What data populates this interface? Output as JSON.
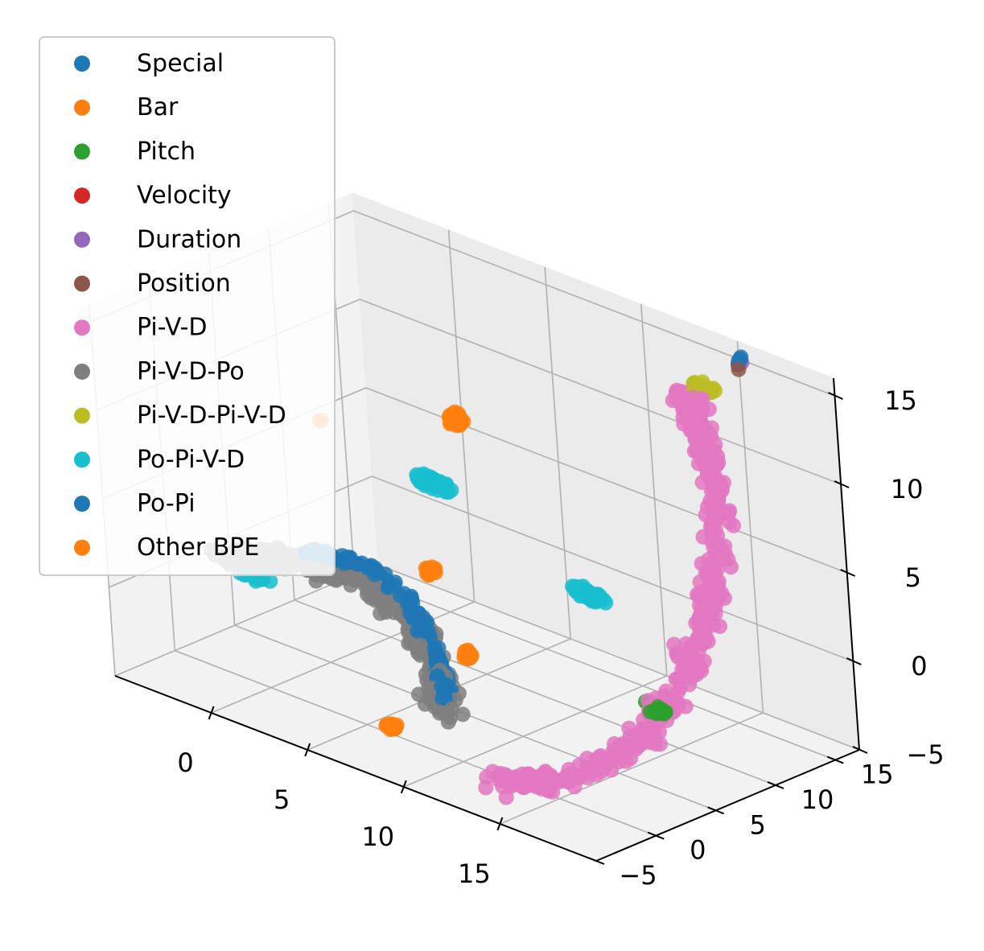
{
  "chart_data": {
    "type": "scatter",
    "projection": "3d",
    "title": "",
    "xlabel": "",
    "ylabel": "",
    "zlabel": "",
    "grid": true,
    "legend_position": "upper-left",
    "xlim": [
      -5,
      20
    ],
    "ylim": [
      -5,
      17
    ],
    "zlim": [
      -5,
      16
    ],
    "x_ticks": [
      "0",
      "5",
      "10",
      "15"
    ],
    "y_ticks": [
      "−5",
      "0",
      "5",
      "10",
      "15"
    ],
    "z_ticks": [
      "−5",
      "0",
      "5",
      "10",
      "15"
    ],
    "series": [
      {
        "name": "Special",
        "color": "#1f77b4",
        "clusters": [
          {
            "center": [
              15,
              17,
              15
            ],
            "spread": [
              0.3,
              0.3,
              0.3
            ],
            "count": 4
          }
        ]
      },
      {
        "name": "Bar",
        "color": "#ff7f0e",
        "clusters": [
          {
            "center": [
              -3,
              10,
              6
            ],
            "spread": [
              0.2,
              0.2,
              0.2
            ],
            "count": 2
          }
        ]
      },
      {
        "name": "Pitch",
        "color": "#2ca02c",
        "clusters": [
          {
            "center": [
              15,
              8,
              -2
            ],
            "spread": [
              0.5,
              0.3,
              0.3
            ],
            "count": 14
          },
          {
            "center": [
              18,
              4,
              0
            ],
            "spread": [
              0.6,
              0.3,
              0.3
            ],
            "count": 18
          }
        ]
      },
      {
        "name": "Velocity",
        "color": "#d62728",
        "clusters": []
      },
      {
        "name": "Duration",
        "color": "#9467bd",
        "clusters": [
          {
            "center": [
              15,
              17,
              14.8
            ],
            "spread": [
              0.2,
              0.2,
              0.2
            ],
            "count": 2
          }
        ]
      },
      {
        "name": "Position",
        "color": "#8c564b",
        "clusters": [
          {
            "center": [
              15,
              17,
              14.6
            ],
            "spread": [
              0.2,
              0.2,
              0.2
            ],
            "count": 2
          }
        ]
      },
      {
        "name": "Pi-V-D",
        "color": "#e377c2",
        "path": [
          [
            12,
            17,
            12
          ],
          [
            14,
            15,
            11
          ],
          [
            16,
            13,
            9
          ],
          [
            17,
            11,
            6
          ],
          [
            17.5,
            9,
            3
          ],
          [
            17,
            7,
            0
          ],
          [
            16,
            5,
            -3
          ],
          [
            14,
            2,
            -5
          ],
          [
            12,
            -1,
            -5
          ]
        ],
        "spread": [
          1.0,
          0.8,
          0.8
        ],
        "count": 420
      },
      {
        "name": "Pi-V-D-Po",
        "color": "#7f7f7f",
        "path": [
          [
            -4,
            3,
            0
          ],
          [
            -1,
            3,
            1
          ],
          [
            2,
            4,
            1
          ],
          [
            5,
            4,
            0
          ],
          [
            7,
            3,
            -2
          ],
          [
            8,
            2,
            -4
          ]
        ],
        "spread": [
          1.2,
          1.0,
          0.8
        ],
        "count": 260
      },
      {
        "name": "Pi-V-D-Pi-V-D",
        "color": "#bcbd22",
        "clusters": [
          {
            "center": [
              13,
              17,
              12.5
            ],
            "spread": [
              1.0,
              0.3,
              0.3
            ],
            "count": 30
          }
        ]
      },
      {
        "name": "Po-Pi-V-D",
        "color": "#17becf",
        "clusters": [
          {
            "center": [
              4,
              8,
              6
            ],
            "spread": [
              1.2,
              0.5,
              0.4
            ],
            "count": 55
          },
          {
            "center": [
              12,
              8,
              3
            ],
            "spread": [
              1.5,
              0.4,
              0.4
            ],
            "count": 50
          },
          {
            "center": [
              -3,
              4,
              -1
            ],
            "spread": [
              1.0,
              0.5,
              0.4
            ],
            "count": 30
          }
        ]
      },
      {
        "name": "Po-Pi",
        "color": "#1f77b4",
        "path": [
          [
            0,
            3,
            2
          ],
          [
            3,
            4,
            2
          ],
          [
            5,
            4,
            1
          ],
          [
            7,
            3,
            -1
          ],
          [
            8,
            2,
            -3
          ]
        ],
        "spread": [
          0.6,
          0.4,
          0.4
        ],
        "count": 110
      },
      {
        "name": "Other BPE",
        "color": "#ff7f0e",
        "clusters": [
          {
            "center": [
              3,
              12,
              8
            ],
            "spread": [
              0.5,
              0.4,
              0.6
            ],
            "count": 40
          },
          {
            "center": [
              5,
              6,
              2
            ],
            "spread": [
              0.3,
              0.3,
              0.5
            ],
            "count": 20
          },
          {
            "center": [
              8,
              4,
              -1
            ],
            "spread": [
              0.3,
              0.3,
              0.4
            ],
            "count": 20
          },
          {
            "center": [
              7,
              -1,
              -4
            ],
            "spread": [
              0.4,
              0.3,
              0.2
            ],
            "count": 20
          }
        ]
      }
    ]
  }
}
